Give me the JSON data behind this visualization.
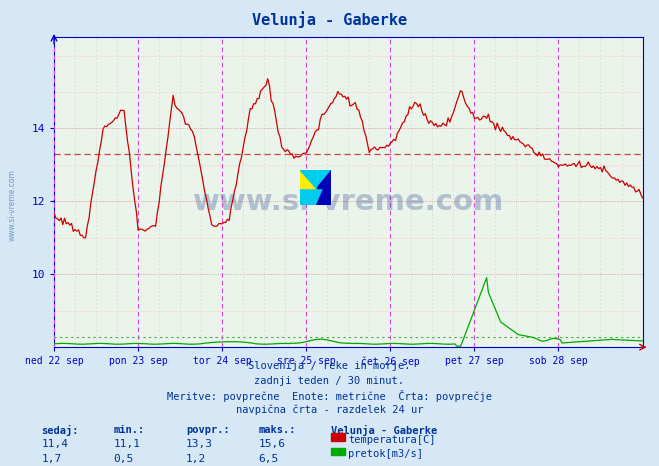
{
  "title": "Velunja - Gaberke",
  "bg_color": "#d6e8f5",
  "plot_bg_color": "#eaf4ea",
  "temp_color": "#cc0000",
  "flow_color": "#00aa00",
  "avg_temp_color": "#cc4444",
  "avg_flow_color": "#44aa44",
  "vline_magenta": "#dd44dd",
  "vline_gray": "#aaaaaa",
  "axis_color": "#0000cc",
  "text_color": "#003399",
  "watermark_color": "#1a3a8a",
  "x_labels": [
    "ned 22 sep",
    "pon 23 sep",
    "tor 24 sep",
    "sre 25 sep",
    "čet 26 sep",
    "pet 27 sep",
    "sob 28 sep"
  ],
  "x_ticks_pos": [
    0,
    48,
    96,
    144,
    192,
    240,
    288
  ],
  "n": 337,
  "ylim": [
    8.0,
    16.5
  ],
  "yticks": [
    10,
    12,
    14
  ],
  "temp_avg": 13.3,
  "flow_avg_mapped": 9.2,
  "subtitle_lines": [
    "Slovenija / reke in morje.",
    "zadnji teden / 30 minut.",
    "Meritve: povprečne  Enote: metrične  Črta: povprečje",
    "navpična črta - razdelek 24 ur"
  ],
  "legend_title": "Velunja - Gaberke",
  "legend_entries": [
    {
      "label": "temperatura[C]",
      "color": "#cc0000"
    },
    {
      "label": "pretok[m3/s]",
      "color": "#00aa00"
    }
  ],
  "table_headers": [
    "sedaj:",
    "min.:",
    "povpr.:",
    "maks.:"
  ],
  "table_row1": [
    "11,4",
    "11,1",
    "13,3",
    "15,6"
  ],
  "table_row2": [
    "1,7",
    "0,5",
    "1,2",
    "6,5"
  ]
}
